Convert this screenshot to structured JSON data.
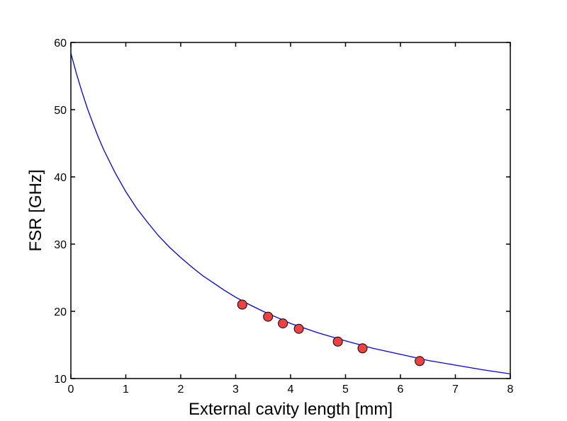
{
  "chart_data": {
    "type": "scatter",
    "title": "",
    "xlabel": "External cavity length [mm]",
    "ylabel": "FSR [GHz]",
    "xlim": [
      0,
      8
    ],
    "ylim": [
      10,
      60
    ],
    "x_ticks": [
      "0",
      "1",
      "2",
      "3",
      "4",
      "5",
      "6",
      "7",
      "8"
    ],
    "y_ticks": [
      "10",
      "20",
      "30",
      "40",
      "50",
      "60"
    ],
    "grid": false,
    "legend": "none",
    "series": [
      {
        "kind": "points",
        "color": "#f04040",
        "edge_color": "#000000",
        "points": [
          {
            "x": 3.12,
            "y": 21.0
          },
          {
            "x": 3.59,
            "y": 19.2
          },
          {
            "x": 3.86,
            "y": 18.2
          },
          {
            "x": 4.15,
            "y": 17.4
          },
          {
            "x": 4.86,
            "y": 15.5
          },
          {
            "x": 5.31,
            "y": 14.5
          },
          {
            "x": 6.35,
            "y": 12.6
          }
        ]
      },
      {
        "kind": "fit-curve",
        "color": "#0000ee",
        "x": [
          0,
          0.1,
          0.2,
          0.3,
          0.4,
          0.5,
          0.6,
          0.8,
          1.0,
          1.2,
          1.4,
          1.6,
          1.8,
          2.0,
          2.2,
          2.4,
          2.6,
          2.8,
          3.0,
          3.25,
          3.5,
          3.75,
          4.0,
          4.5,
          5.0,
          5.5,
          6.0,
          6.5,
          7.0,
          7.5,
          8.0
        ],
        "y": [
          58.4,
          55.4,
          52.7,
          50.2,
          48.0,
          45.9,
          44.0,
          40.7,
          37.8,
          35.3,
          33.2,
          31.2,
          29.5,
          28.0,
          26.6,
          25.3,
          24.2,
          23.1,
          22.1,
          21.0,
          20.0,
          19.1,
          18.2,
          16.8,
          15.6,
          14.5,
          13.6,
          12.7,
          12.0,
          11.3,
          10.7
        ]
      }
    ]
  }
}
